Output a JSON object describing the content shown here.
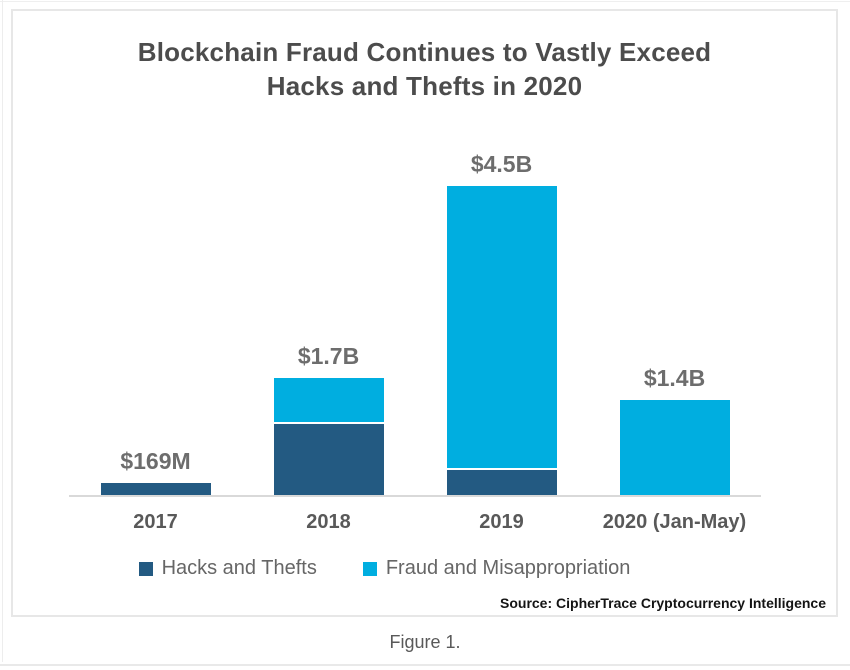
{
  "chart": {
    "title_line1": "Blockchain Fraud Continues to Vastly Exceed",
    "title_line2": "Hacks and Thefts in 2020",
    "source": "Source: CipherTrace Cryptocurrency Intelligence",
    "caption": "Figure 1."
  },
  "chart_data": {
    "type": "bar",
    "stacked": true,
    "title": "Blockchain Fraud Continues to Vastly Exceed Hacks and Thefts in 2020",
    "categories": [
      "2017",
      "2018",
      "2019",
      "2020 (Jan-May)"
    ],
    "series": [
      {
        "name": "Hacks and Thefts",
        "color": "#235a82",
        "values": [
          0.169,
          1.04,
          0.37,
          0
        ]
      },
      {
        "name": "Fraud and Misappropriation",
        "color": "#00aee0",
        "values": [
          0,
          0.65,
          4.13,
          1.4
        ]
      }
    ],
    "total_labels": [
      "$169M",
      "$1.7B",
      "$4.5B",
      "$1.4B"
    ],
    "totals_usd_billions": [
      0.169,
      1.7,
      4.5,
      1.4
    ],
    "values_unit": "USD billions (segment splits estimated from bar heights)",
    "xlabel": "",
    "ylabel": "",
    "ylim": [
      0,
      5
    ],
    "gridlines": false,
    "y_axis_hidden": true,
    "legend_position": "bottom",
    "source": "Source: CipherTrace Cryptocurrency Intelligence",
    "caption": "Figure 1."
  }
}
